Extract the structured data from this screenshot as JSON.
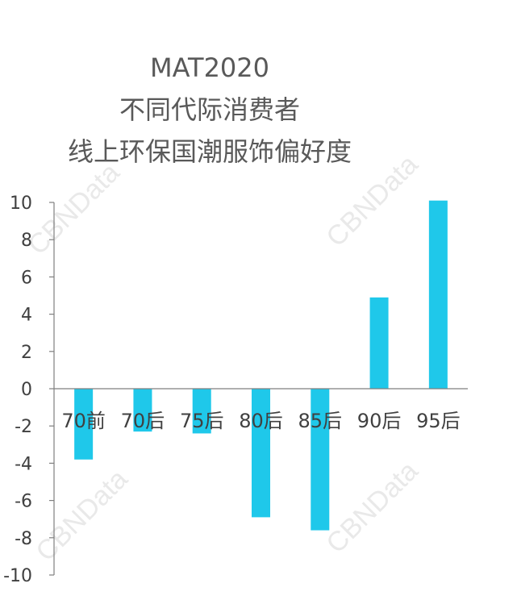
{
  "watermark": "CBNData",
  "chart_data": {
    "type": "bar",
    "title_lines": [
      "MAT2020",
      "不同代际消费者",
      "线上环保国潮服饰偏好度"
    ],
    "categories": [
      "70前",
      "70后",
      "75后",
      "80后",
      "85后",
      "90后",
      "95后"
    ],
    "values": [
      -3.8,
      -2.3,
      -2.4,
      -6.9,
      -7.6,
      4.9,
      10.1
    ],
    "ylim": [
      -10,
      10
    ],
    "yticks": [
      -10,
      -8,
      -6,
      -4,
      -2,
      0,
      2,
      4,
      6,
      8,
      10
    ],
    "xlabel": "",
    "ylabel": "",
    "bar_color": "#1fc8ea",
    "grid": false,
    "legend": "none"
  }
}
